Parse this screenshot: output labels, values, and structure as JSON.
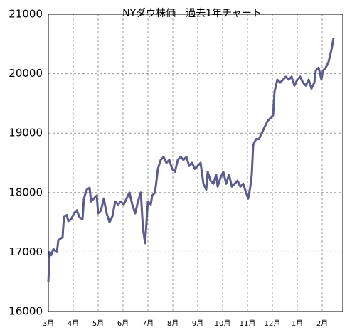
{
  "chart_data": {
    "type": "line",
    "title": "NYダウ株価　過去1年チャート",
    "x": [
      0,
      2,
      4,
      7,
      12,
      14,
      20,
      22,
      26,
      28,
      32,
      36,
      40,
      44,
      48,
      50,
      54,
      58,
      60,
      64,
      68,
      70,
      74,
      78,
      82,
      86,
      90,
      94,
      98,
      102,
      106,
      110,
      114,
      118,
      122,
      126,
      130,
      133,
      136,
      138,
      140,
      144,
      146,
      150,
      154,
      158,
      162,
      166,
      170,
      174,
      178,
      182,
      186,
      190,
      194,
      198,
      202,
      206,
      210,
      214,
      218,
      222,
      224,
      228,
      232,
      236,
      238,
      242,
      246,
      250,
      254,
      258,
      262,
      266,
      270,
      274,
      278,
      281,
      284,
      286,
      288,
      292,
      296,
      300,
      304,
      308,
      312,
      316,
      318,
      322,
      326,
      330,
      334,
      338,
      342,
      346,
      350,
      354,
      358,
      362,
      366,
      370,
      374,
      376,
      380,
      384,
      386,
      390,
      394,
      398,
      401
    ],
    "series": [
      {
        "color": "#5c5c8e",
        "values": [
          16500,
          17000,
          16950,
          17050,
          17000,
          17200,
          17250,
          17600,
          17620,
          17520,
          17550,
          17650,
          17700,
          17580,
          17550,
          17900,
          18050,
          18080,
          17850,
          17900,
          17950,
          17650,
          17700,
          17900,
          17650,
          17500,
          17600,
          17850,
          17800,
          17850,
          17800,
          17900,
          18000,
          17800,
          17650,
          17850,
          18000,
          17400,
          17150,
          17500,
          17850,
          17800,
          17950,
          18000,
          18400,
          18550,
          18600,
          18500,
          18550,
          18400,
          18350,
          18550,
          18600,
          18550,
          18600,
          18450,
          18500,
          18400,
          18450,
          18500,
          18150,
          18050,
          18350,
          18200,
          18150,
          18300,
          18100,
          18250,
          18350,
          18150,
          18300,
          18100,
          18150,
          18200,
          18100,
          18150,
          18000,
          17900,
          18100,
          18300,
          18800,
          18900,
          18900,
          19000,
          19100,
          19200,
          19250,
          19300,
          19700,
          19900,
          19850,
          19900,
          19950,
          19900,
          19950,
          19800,
          19900,
          19950,
          19850,
          19800,
          19900,
          19750,
          19850,
          20050,
          20100,
          19900,
          20050,
          20100,
          20200,
          20400,
          20600
        ]
      }
    ],
    "xlim": [
      0,
      414
    ],
    "xticks": [
      {
        "value": 0,
        "label": "3月"
      },
      {
        "value": 35,
        "label": "4月"
      },
      {
        "value": 70,
        "label": "5月"
      },
      {
        "value": 105,
        "label": "6月"
      },
      {
        "value": 140,
        "label": "7月"
      },
      {
        "value": 175,
        "label": "8月"
      },
      {
        "value": 210,
        "label": "9月"
      },
      {
        "value": 245,
        "label": "10月"
      },
      {
        "value": 280,
        "label": "11月"
      },
      {
        "value": 315,
        "label": "12月"
      },
      {
        "value": 350,
        "label": "1月"
      },
      {
        "value": 385,
        "label": "2月"
      }
    ],
    "ylim": [
      16000,
      21000
    ],
    "yticks": [
      16000,
      17000,
      18000,
      19000,
      20000,
      21000
    ],
    "grid": true
  }
}
